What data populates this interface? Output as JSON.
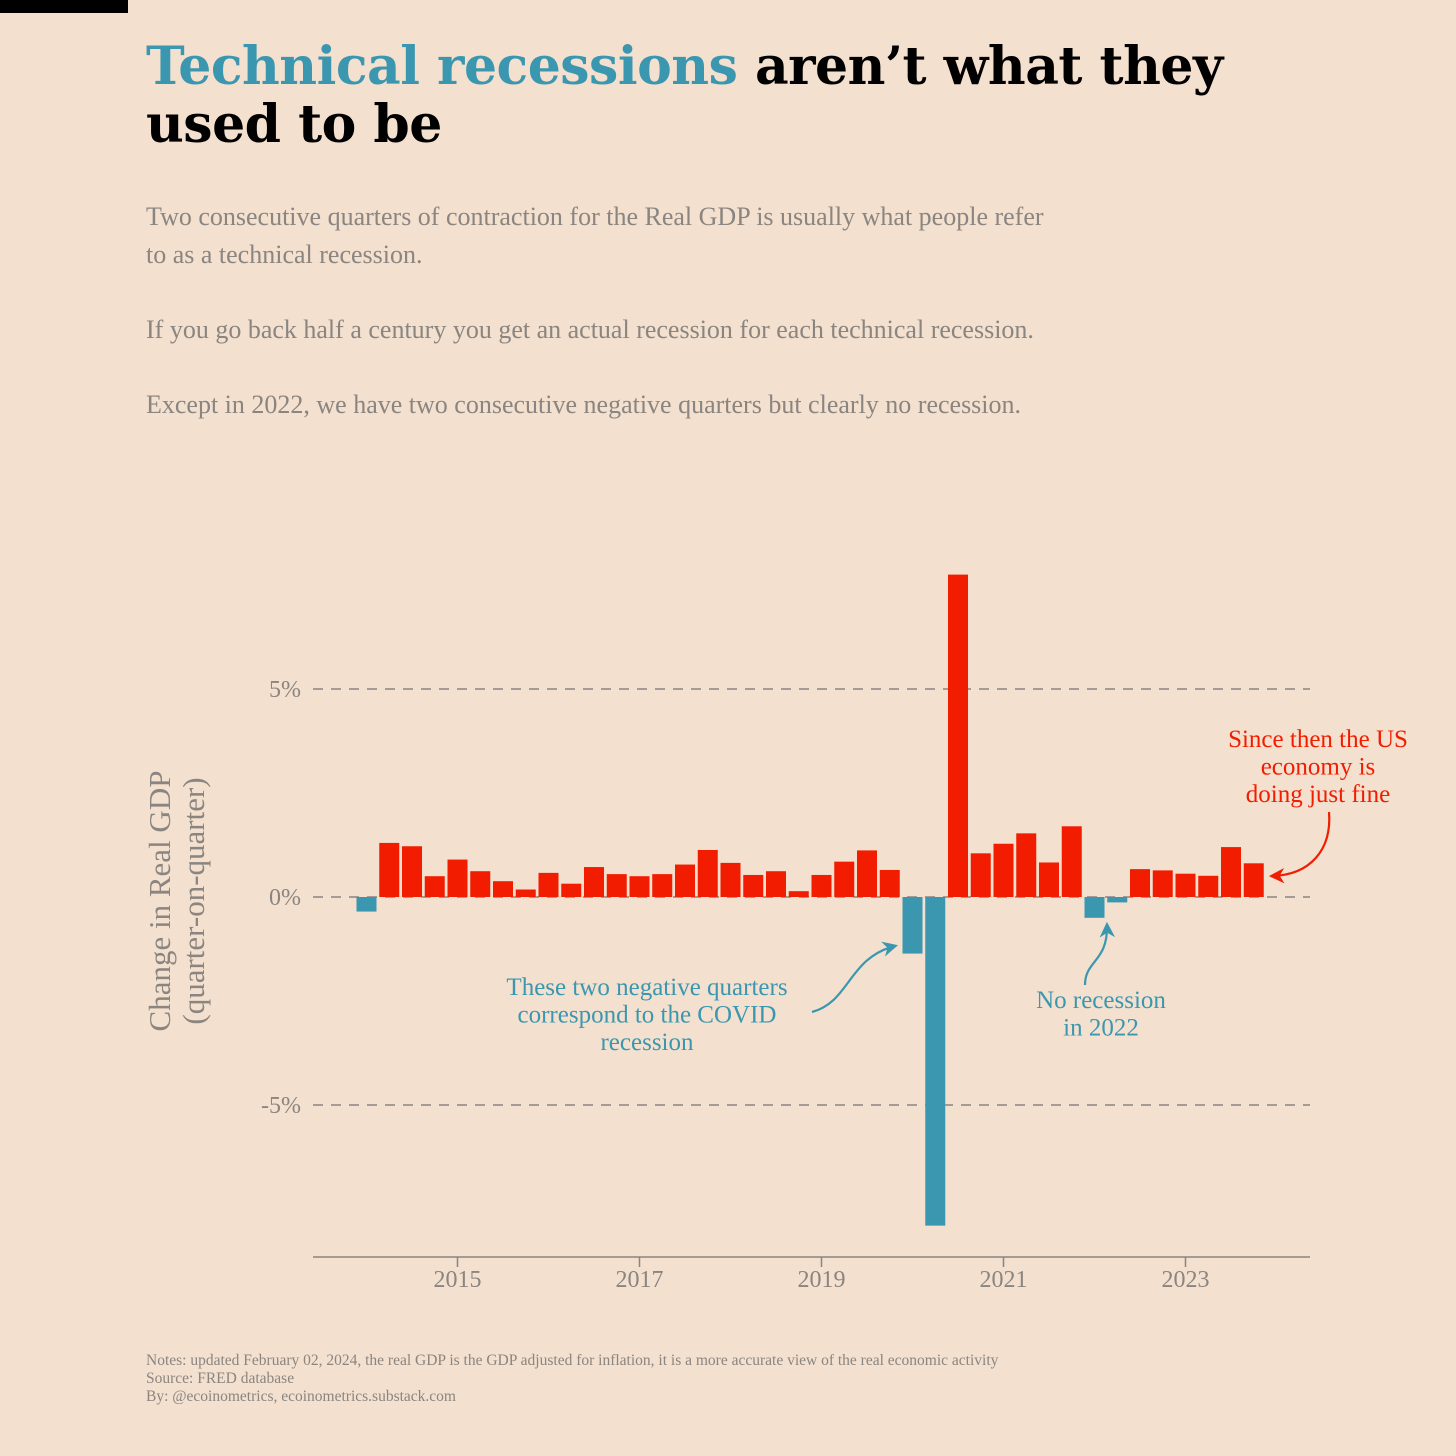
{
  "title": {
    "accent": "Technical recessions",
    "rest": " aren’t what they used to be"
  },
  "subtitle": {
    "p1": "Two consecutive quarters of contraction for the Real GDP is usually what people refer to as a technical recession.",
    "p2": "If you go back half a century you get an actual recession for each technical recession.",
    "p3": "Except in 2022, we have two consecutive negative quarters but clearly no recession."
  },
  "footer": {
    "notes": "Notes: updated February 02, 2024, the real GDP is the GDP adjusted for inflation, it is a more accurate view of the real economic activity",
    "source": "Source: FRED database",
    "by": "By: @ecoinometrics, ecoinometrics.substack.com"
  },
  "colors": {
    "positive": "#f21d00",
    "negative": "#3b97af",
    "text_muted": "#8a8580",
    "gridline": "#8a8580",
    "background": "#f3e0cf"
  },
  "chart_data": {
    "type": "bar",
    "ylabel_line1": "Change in Real GDP",
    "ylabel_line2": "(quarter-on-quarter)",
    "x_unit": "quarter",
    "x": [
      "2014Q1",
      "2014Q2",
      "2014Q3",
      "2014Q4",
      "2015Q1",
      "2015Q2",
      "2015Q3",
      "2015Q4",
      "2016Q1",
      "2016Q2",
      "2016Q3",
      "2016Q4",
      "2017Q1",
      "2017Q2",
      "2017Q3",
      "2017Q4",
      "2018Q1",
      "2018Q2",
      "2018Q3",
      "2018Q4",
      "2019Q1",
      "2019Q2",
      "2019Q3",
      "2019Q4",
      "2020Q1",
      "2020Q2",
      "2020Q3",
      "2020Q4",
      "2021Q1",
      "2021Q2",
      "2021Q3",
      "2021Q4",
      "2022Q1",
      "2022Q2",
      "2022Q3",
      "2022Q4",
      "2023Q1",
      "2023Q2",
      "2023Q3",
      "2023Q4"
    ],
    "values": [
      -0.35,
      1.3,
      1.22,
      0.5,
      0.9,
      0.62,
      0.38,
      0.18,
      0.58,
      0.32,
      0.72,
      0.55,
      0.5,
      0.55,
      0.78,
      1.13,
      0.82,
      0.53,
      0.62,
      0.14,
      0.53,
      0.85,
      1.12,
      0.65,
      -1.36,
      -7.9,
      7.75,
      1.05,
      1.28,
      1.53,
      0.83,
      1.7,
      -0.5,
      -0.13,
      0.67,
      0.64,
      0.56,
      0.51,
      1.2,
      0.81
    ],
    "ylim": [
      -8.6,
      8.6
    ],
    "yticks": [
      5,
      0,
      -5
    ],
    "ytick_labels": [
      "5%",
      "0%",
      "-5%"
    ],
    "xticks": [
      "2015",
      "2017",
      "2019",
      "2021",
      "2023"
    ],
    "grid": "horizontal dashed at y ticks",
    "annotations": [
      {
        "id": "covid",
        "lines": [
          "These two negative quarters",
          "correspond to the COVID",
          "recession"
        ],
        "color": "negative"
      },
      {
        "id": "norec",
        "lines": [
          "No recession",
          "in 2022"
        ],
        "color": "negative"
      },
      {
        "id": "fine",
        "lines": [
          "Since then the US",
          "economy is",
          "doing just fine"
        ],
        "color": "positive"
      }
    ]
  }
}
